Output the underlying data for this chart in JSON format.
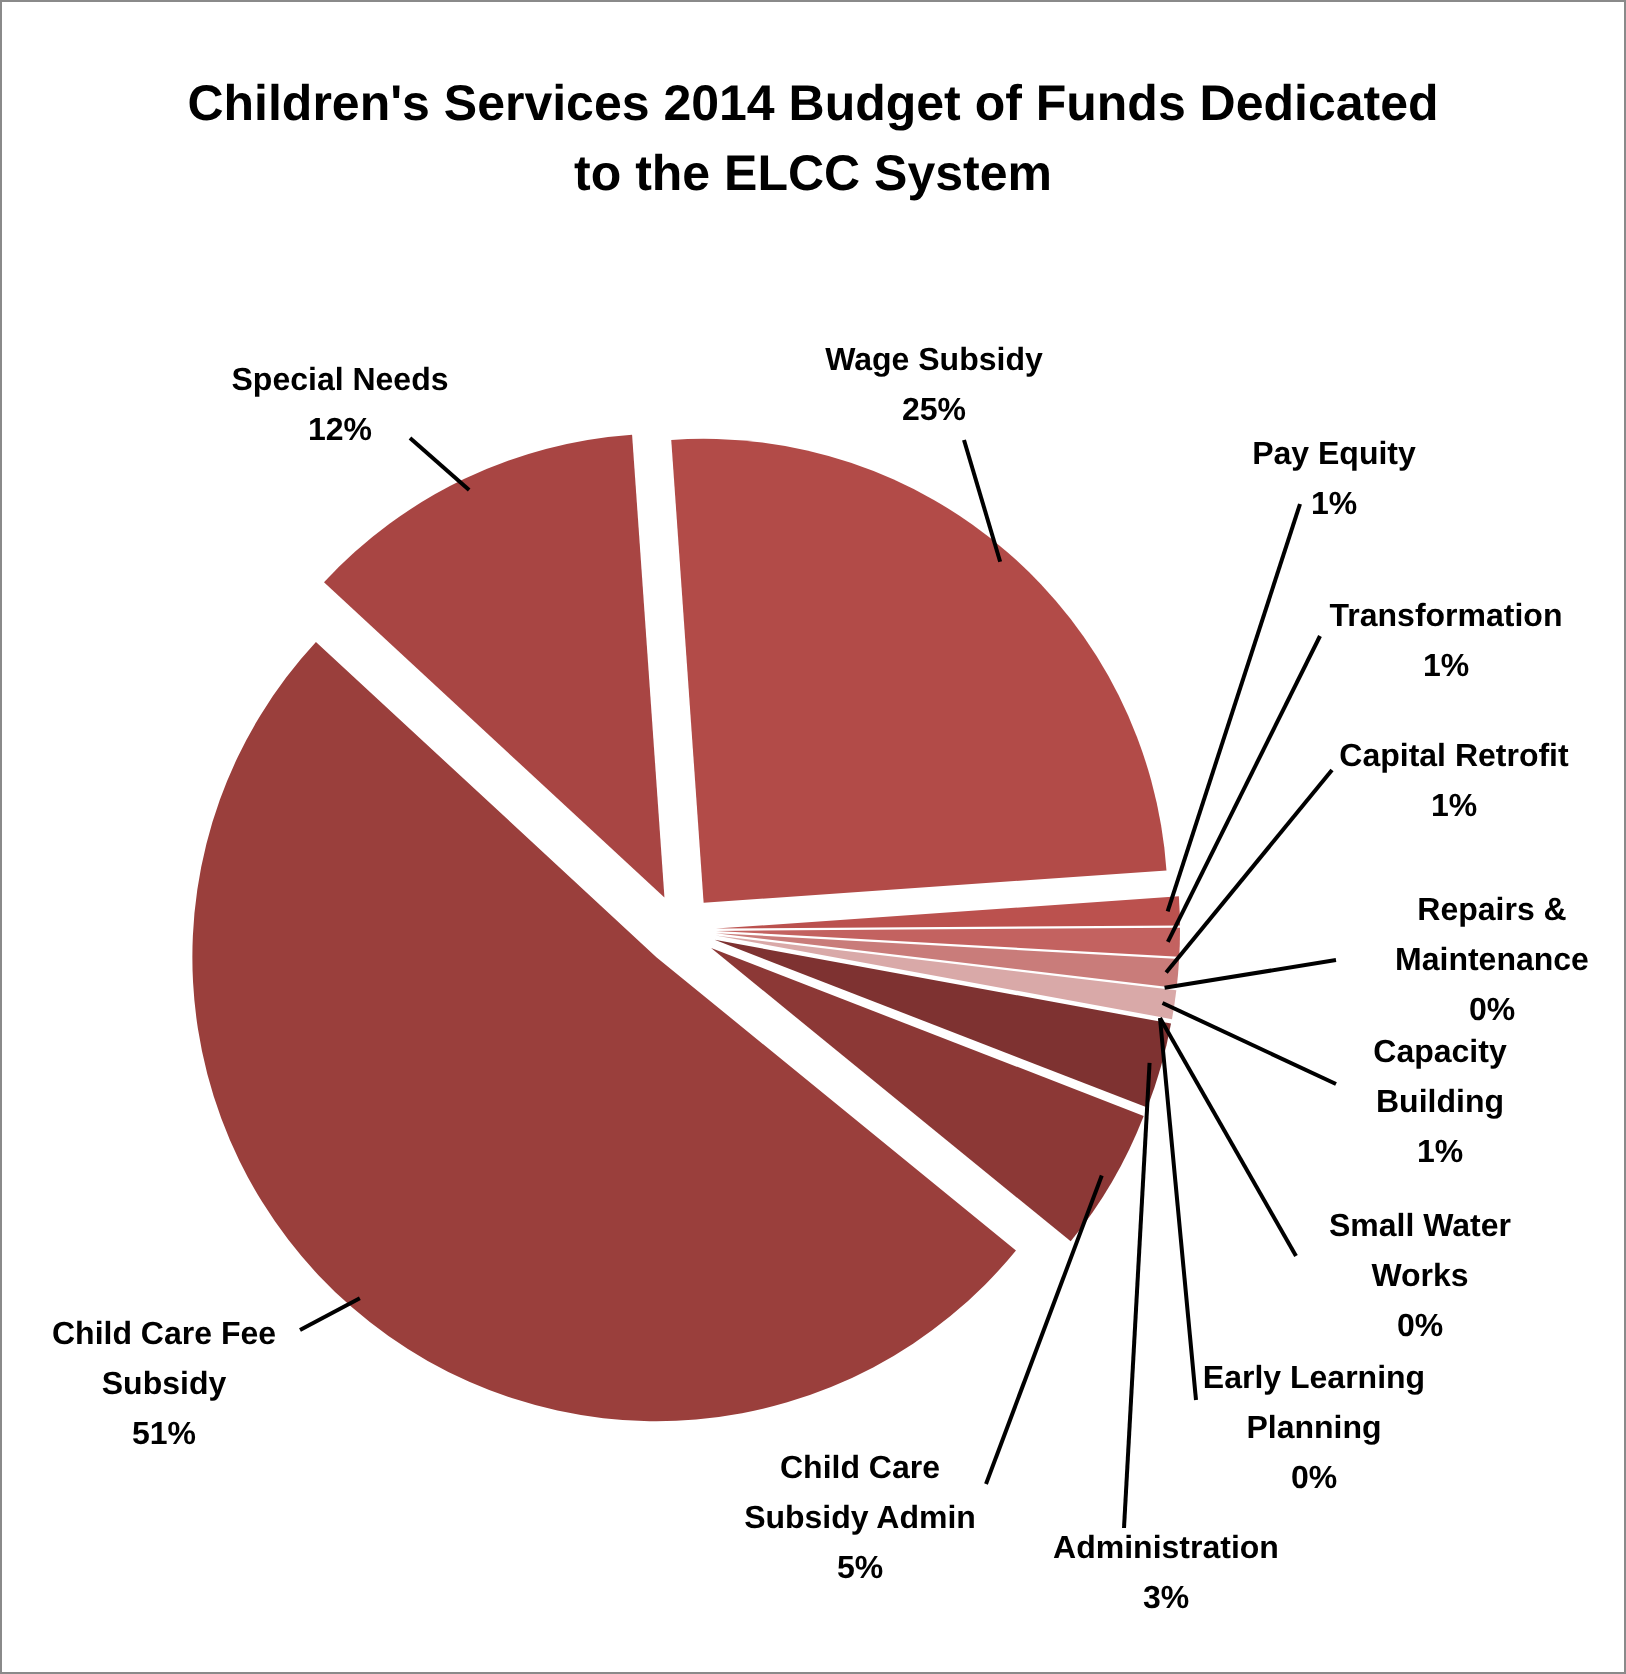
{
  "chart_data": {
    "type": "pie",
    "title": "Children's Services 2014 Budget of Funds Dedicated to the ELCC System",
    "categories": [
      "Wage Subsidy",
      "Pay Equity",
      "Transformation",
      "Capital Retrofit",
      "Repairs & Maintenance",
      "Capacity Building",
      "Small Water Works",
      "Early Learning Planning",
      "Administration",
      "Child Care Subsidy Admin",
      "Child Care Fee Subsidy",
      "Special Needs"
    ],
    "values": [
      25,
      1,
      1,
      1,
      0,
      1,
      0,
      0,
      3,
      5,
      51,
      12
    ],
    "value_labels": [
      "25%",
      "1%",
      "1%",
      "1%",
      "0%",
      "1%",
      "0%",
      "0%",
      "3%",
      "5%",
      "51%",
      "12%"
    ],
    "colors": [
      "#b24b48",
      "#bb514e",
      "#c36260",
      "#c97c7a",
      "#d29594",
      "#d9a9a8",
      "#dcb3b2",
      "#ddb9b8",
      "#7e3231",
      "#8c3836",
      "#9a3f3c",
      "#a84543"
    ],
    "data_labels": false
  }
}
